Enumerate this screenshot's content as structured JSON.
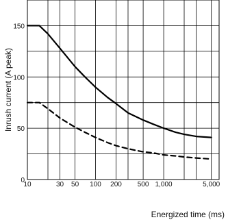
{
  "chart_data": {
    "type": "line",
    "title": "",
    "xlabel": "Energized time (ms)",
    "ylabel": "Inrush current (A peak)",
    "x_scale": "log",
    "xlim": [
      10,
      6500
    ],
    "ylim": [
      0,
      175
    ],
    "grid": true,
    "legend": "none",
    "x_ticks": [
      {
        "value": 10,
        "label": "10"
      },
      {
        "value": 30,
        "label": "30"
      },
      {
        "value": 50,
        "label": "50"
      },
      {
        "value": 100,
        "label": "100"
      },
      {
        "value": 200,
        "label": "200"
      },
      {
        "value": 500,
        "label": "500"
      },
      {
        "value": 1000,
        "label": "1,000"
      },
      {
        "value": 5000,
        "label": "5,000"
      }
    ],
    "x_grid": [
      10,
      20,
      30,
      50,
      100,
      200,
      300,
      500,
      1000,
      2000,
      3000,
      5000
    ],
    "y_ticks": [
      {
        "value": 0,
        "label": "0"
      },
      {
        "value": 50,
        "label": "50"
      },
      {
        "value": 100,
        "label": "100"
      },
      {
        "value": 150,
        "label": "150"
      }
    ],
    "y_grid": [
      0,
      25,
      50,
      75,
      100,
      125,
      150,
      175
    ],
    "series": [
      {
        "style": "solid",
        "color": "#000000",
        "x": [
          10,
          15,
          20,
          30,
          50,
          70,
          100,
          150,
          200,
          300,
          500,
          700,
          1000,
          1500,
          2000,
          3000,
          5000
        ],
        "y": [
          150,
          150,
          142,
          128,
          110,
          100,
          90,
          80,
          74,
          65,
          58,
          54,
          50,
          46,
          44,
          42,
          41
        ]
      },
      {
        "style": "dashed",
        "color": "#000000",
        "x": [
          10,
          15,
          20,
          30,
          50,
          70,
          100,
          150,
          200,
          300,
          500,
          700,
          1000,
          1500,
          2000,
          3000,
          5000
        ],
        "y": [
          75,
          75,
          69,
          60,
          51,
          46,
          41,
          36,
          33,
          30,
          27,
          26,
          24,
          23,
          22,
          21,
          20
        ]
      }
    ]
  }
}
